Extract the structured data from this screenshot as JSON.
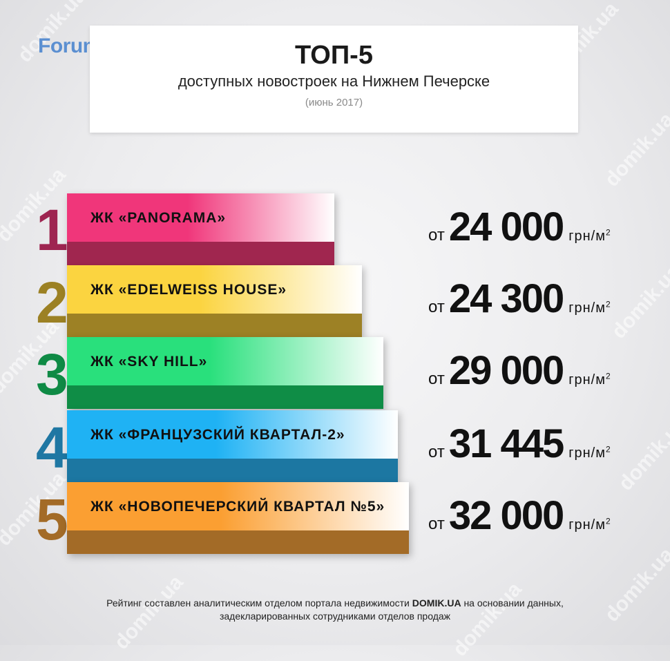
{
  "logo": {
    "text": "Forum.Domik.ua",
    "dots": [
      "#8fb1d8",
      "#d6dc8a",
      "#d98aa4"
    ]
  },
  "watermark": {
    "text": "domik.ua"
  },
  "header": {
    "title": "ТОП-5",
    "subtitle": "доступных новостроек на Нижнем Печерске",
    "date": "(июнь 2017)"
  },
  "ranking": [
    {
      "rank": "1",
      "name": "ЖК «PANORAMA»",
      "price_from": "от",
      "price": "24 000",
      "unit": "грн/м",
      "unit_sup": "2",
      "color_top": "#f0367a",
      "color_bottom": "#a0264f",
      "color_rank": "#9e2551"
    },
    {
      "rank": "2",
      "name": "ЖК «EDELWEISS HOUSE»",
      "price_from": "от",
      "price": "24 300",
      "unit": "грн/м",
      "unit_sup": "2",
      "color_top": "#fbd440",
      "color_bottom": "#9d8125",
      "color_rank": "#9c8124"
    },
    {
      "rank": "3",
      "name": "ЖК «SKY HILL»",
      "price_from": "от",
      "price": "29 000",
      "unit": "грн/м",
      "unit_sup": "2",
      "color_top": "#29e07c",
      "color_bottom": "#0f8d46",
      "color_rank": "#0f8a45"
    },
    {
      "rank": "4",
      "name": "ЖК «ФРАНЦУЗСКИЙ КВАРТАЛ-2»",
      "price_from": "от",
      "price": "31 445",
      "unit": "грн/м",
      "unit_sup": "2",
      "color_top": "#1fb2f4",
      "color_bottom": "#1c77a2",
      "color_rank": "#1f77a3"
    },
    {
      "rank": "5",
      "name": "ЖК «НОВОПЕЧЕРСКИЙ КВАРТАЛ №5»",
      "price_from": "от",
      "price": "32 000",
      "unit": "грн/м",
      "unit_sup": "2",
      "color_top": "#fb9f32",
      "color_bottom": "#a36b27",
      "color_rank": "#a36b27"
    }
  ],
  "footer": {
    "line1_before": "Рейтинг составлен аналитическим отделом портала недвижимости ",
    "line1_brand": "DOMIK.UA",
    "line1_after": " на основании данных,",
    "line2": "задекларированных сотрудниками отделов продаж"
  }
}
